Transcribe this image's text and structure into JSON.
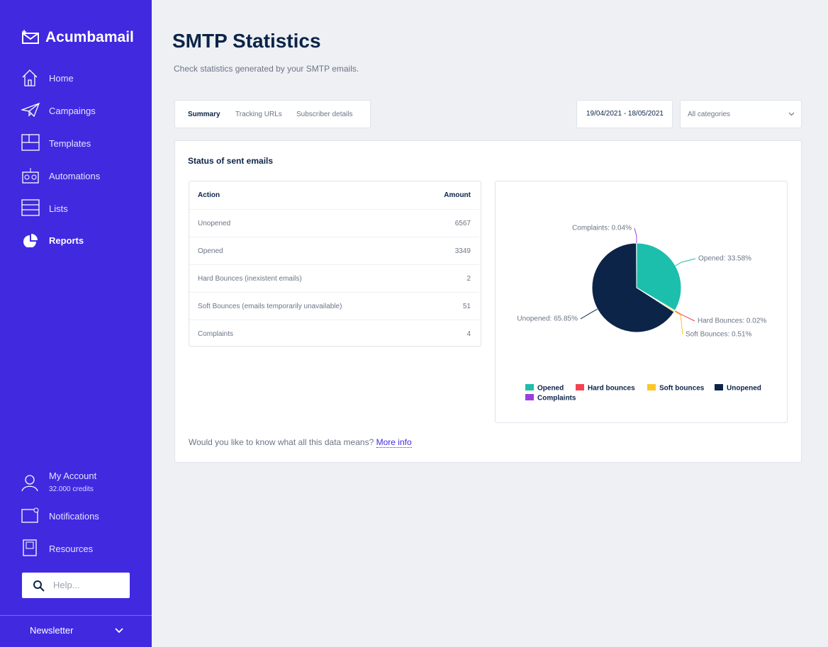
{
  "sidebar": {
    "brand": "Acumbamail",
    "nav": [
      "Home",
      "Campaings",
      "Templates",
      "Automations",
      "Lists",
      "Reports"
    ],
    "account": {
      "label": "My Account",
      "credits": "32.000 credits"
    },
    "links": [
      "Notifications",
      "Resources"
    ],
    "search_placeholder": "Help...",
    "footer": "Newsletter"
  },
  "header": {
    "title": "SMTP Statistics",
    "subtitle": "Check statistics generated by your SMTP emails."
  },
  "tabs": [
    "Summary",
    "Tracking URLs",
    "Subscriber details"
  ],
  "filters": {
    "date_range": "19/04/2021 - 18/05/2021",
    "category": "All categories"
  },
  "panel": {
    "title": "Status of sent emails",
    "footer_text": "Would you like to know what all this data means?",
    "footer_link": "More info"
  },
  "table": {
    "columns": [
      "Action",
      "Amount"
    ],
    "rows": [
      [
        "Unopened",
        6567
      ],
      [
        "Opened",
        3349
      ],
      [
        "Hard Bounces (inexistent emails)",
        2
      ],
      [
        "Soft Bounces (emails temporarily unavailable)",
        51
      ],
      [
        "Complaints",
        4
      ]
    ]
  },
  "chart_data": {
    "type": "pie",
    "categories": [
      "Opened",
      "Hard bounces",
      "Soft bounces",
      "Unopened",
      "Complaints"
    ],
    "values": [
      33.58,
      0.02,
      0.51,
      65.85,
      0.04
    ],
    "value_labels": [
      "Opened: 33.58%",
      "Hard Bounces: 0.02%",
      "Soft Bounces: 0.51%",
      "Unopened: 65.85%",
      "Complaints: 0.04%"
    ],
    "colors": [
      "#1cbfac",
      "#f2444f",
      "#fbc62b",
      "#0c2448",
      "#9b3ee0"
    ]
  }
}
